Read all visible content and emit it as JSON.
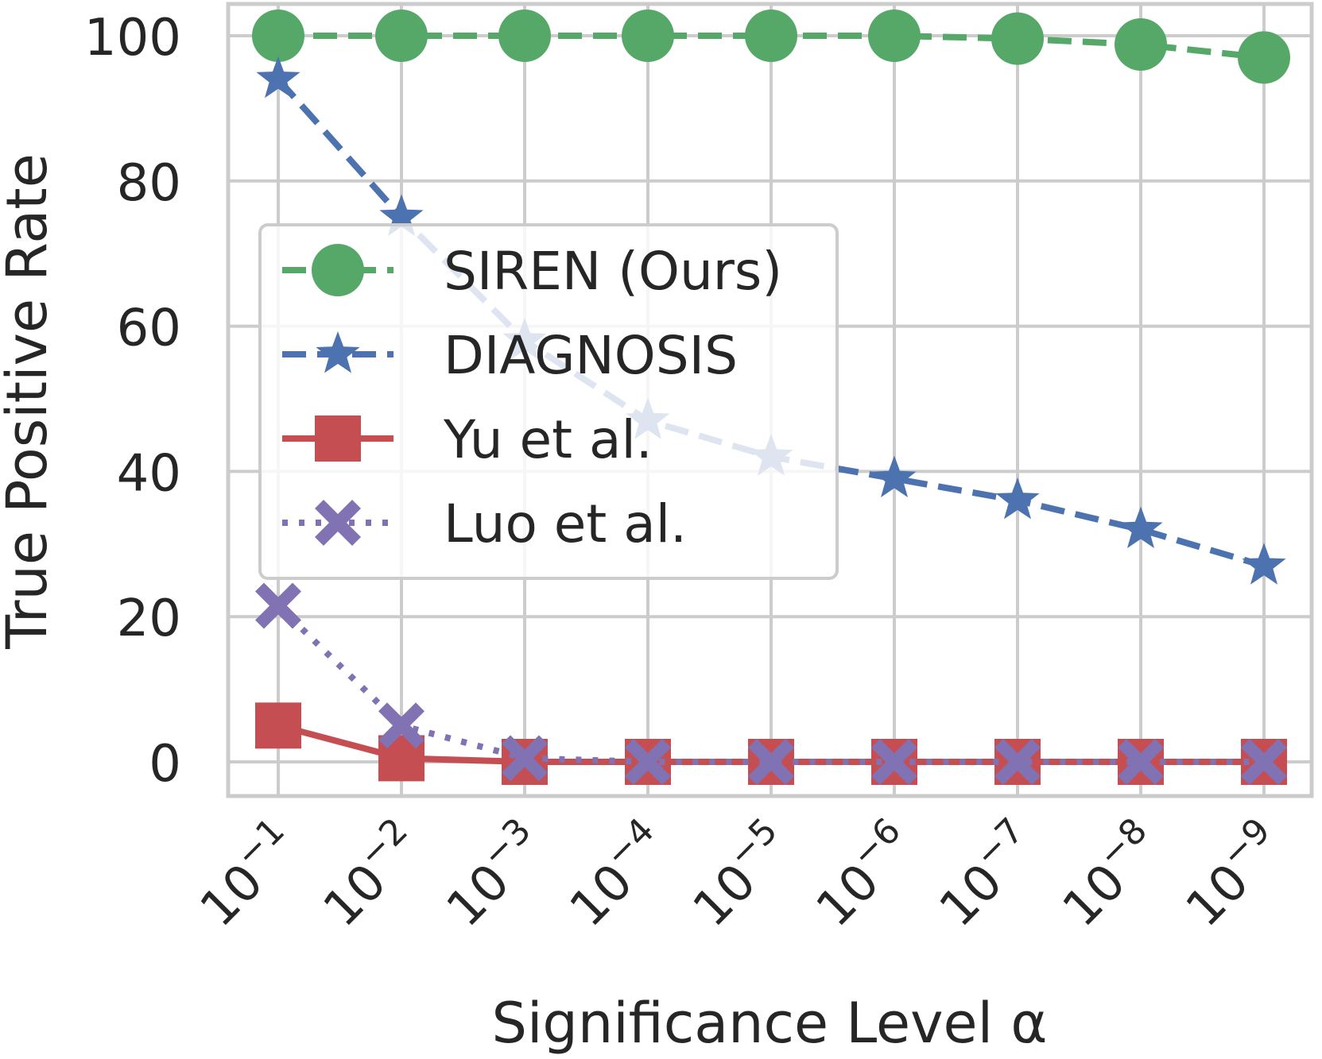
{
  "chart_data": {
    "type": "line",
    "title": "",
    "xlabel": "Significance Level α",
    "ylabel": "True Positive Rate",
    "ylim": [
      -5,
      105
    ],
    "yticks": [
      0,
      20,
      40,
      60,
      80,
      100
    ],
    "grid": true,
    "legend_position": "center-left",
    "categories": [
      {
        "base": "10",
        "exp": "−1"
      },
      {
        "base": "10",
        "exp": "−2"
      },
      {
        "base": "10",
        "exp": "−3"
      },
      {
        "base": "10",
        "exp": "−4"
      },
      {
        "base": "10",
        "exp": "−5"
      },
      {
        "base": "10",
        "exp": "−6"
      },
      {
        "base": "10",
        "exp": "−7"
      },
      {
        "base": "10",
        "exp": "−8"
      },
      {
        "base": "10",
        "exp": "−9"
      }
    ],
    "series": [
      {
        "name": "SIREN (Ours)",
        "color": "#55a868",
        "marker": "circle",
        "dash": "dashed",
        "values": [
          100,
          100,
          100,
          100,
          100,
          100,
          99.6,
          98.8,
          97
        ]
      },
      {
        "name": "DIAGNOSIS",
        "color": "#4c72b0",
        "marker": "star",
        "dash": "dashed",
        "values": [
          94,
          75,
          58,
          47,
          42,
          39,
          36,
          32,
          27
        ]
      },
      {
        "name": "Yu et al.",
        "color": "#c44e52",
        "marker": "square",
        "dash": "solid",
        "values": [
          5,
          0.5,
          0,
          0,
          0,
          0,
          0,
          0,
          0
        ]
      },
      {
        "name": "Luo et al.",
        "color": "#8172b3",
        "marker": "x",
        "dash": "dotted",
        "values": [
          21.5,
          5,
          0.5,
          0,
          0,
          0,
          0,
          0,
          0
        ]
      }
    ]
  }
}
